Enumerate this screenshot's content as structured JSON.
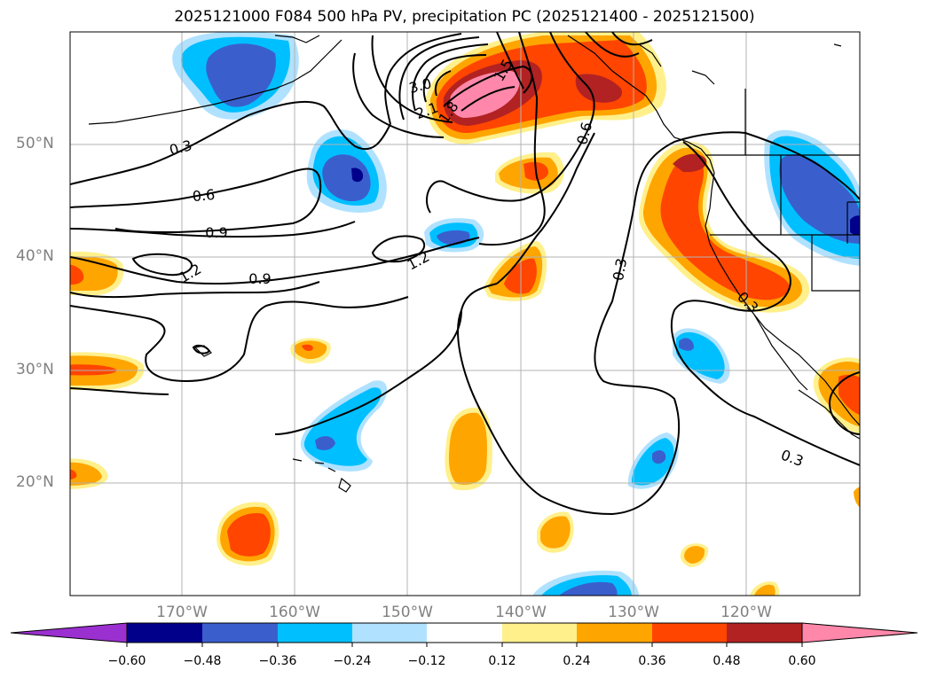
{
  "title": "2025121000 F084 500 hPa PV, precipitation PC (2025121400 - 2025121500)",
  "map": {
    "lat_labels": [
      "50°N",
      "40°N",
      "30°N",
      "20°N"
    ],
    "lon_labels": [
      "170°W",
      "160°W",
      "150°W",
      "140°W",
      "130°W",
      "120°W"
    ],
    "contour_labels": [
      "0.3",
      "0.6",
      "0.9",
      "1.2",
      "0.9",
      "2.1",
      "3.0",
      "1.8",
      "1.2",
      "1.5",
      "0.6",
      "0.3",
      "0.3",
      "0.3"
    ]
  },
  "colorbar": {
    "ticks": [
      "−0.60",
      "−0.48",
      "−0.36",
      "−0.24",
      "−0.12",
      "0.12",
      "0.24",
      "0.36",
      "0.48",
      "0.60"
    ],
    "colors": [
      "#9b30d0",
      "#00008b",
      "#3a5fcd",
      "#00bfff",
      "#b0e2ff",
      "#ffffff",
      "#fff08c",
      "#ffa500",
      "#ff4500",
      "#b22222",
      "#ff88aa"
    ]
  },
  "palette": {
    "pink": "#ff88aa",
    "darkred": "#b22222",
    "red": "#ff4500",
    "orange": "#ffa500",
    "yellow": "#fff08c",
    "lightblue": "#b0e2ff",
    "cyan": "#00bfff",
    "blue": "#3a5fcd",
    "navy": "#00008b"
  }
}
